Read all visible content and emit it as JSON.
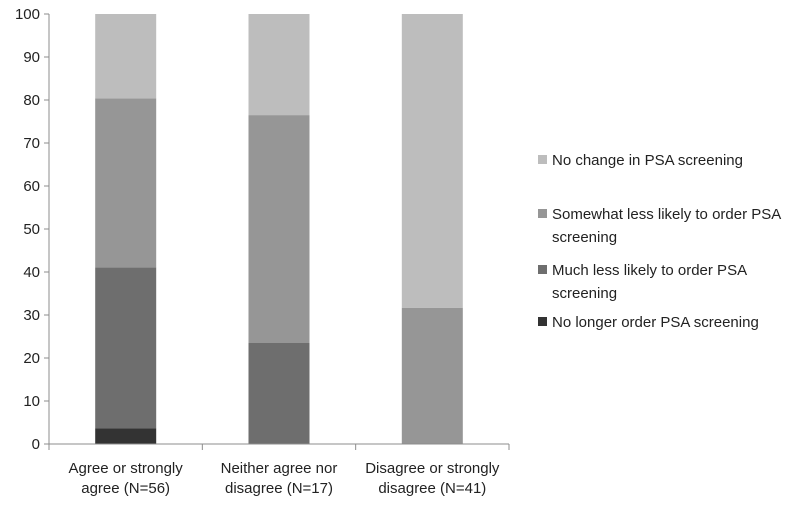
{
  "chart_data": {
    "type": "bar",
    "stacked": true,
    "categories": [
      [
        "Agree or strongly",
        "agree (N=56)"
      ],
      [
        "Neither agree nor",
        "disagree (N=17)"
      ],
      [
        "Disagree or strongly",
        "disagree (N=41)"
      ]
    ],
    "ylim": [
      0,
      100
    ],
    "yticks": [
      0,
      10,
      20,
      30,
      40,
      50,
      60,
      70,
      80,
      90,
      100
    ],
    "grid": false,
    "legend_position": "right",
    "series": [
      {
        "name": "No longer order PSA screening",
        "color": "#333333",
        "values": [
          3.6,
          0,
          0
        ]
      },
      {
        "name": "Much less likely to order PSA screening",
        "color": "#6e6e6e",
        "values": [
          37.5,
          23.5,
          0
        ]
      },
      {
        "name": "Somewhat less likely to order PSA screening",
        "color": "#969696",
        "values": [
          39.3,
          53.0,
          31.7
        ]
      },
      {
        "name": "No change in PSA screening",
        "color": "#bdbdbd",
        "values": [
          19.6,
          23.5,
          68.3
        ]
      }
    ],
    "legend_order": [
      [
        "No change in PSA screening"
      ],
      [
        "Somewhat less likely to order PSA",
        "screening"
      ],
      [
        "Much less likely to order PSA",
        "screening"
      ],
      [
        "No longer order PSA screening"
      ]
    ]
  }
}
